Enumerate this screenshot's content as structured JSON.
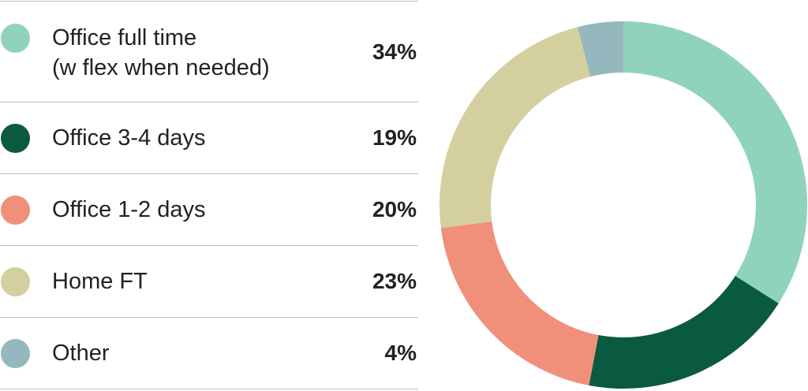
{
  "chart_data": {
    "type": "pie",
    "categories": [
      "Office full time\n(w flex when needed)",
      "Office 3-4 days",
      "Office 1-2 days",
      "Home FT",
      "Other"
    ],
    "values": [
      34,
      19,
      20,
      23,
      4
    ],
    "value_labels": [
      "34%",
      "19%",
      "20%",
      "23%",
      "4%"
    ],
    "colors": [
      "#8fd3bb",
      "#0a5941",
      "#f0907a",
      "#d4cf9f",
      "#94b8bd"
    ]
  }
}
